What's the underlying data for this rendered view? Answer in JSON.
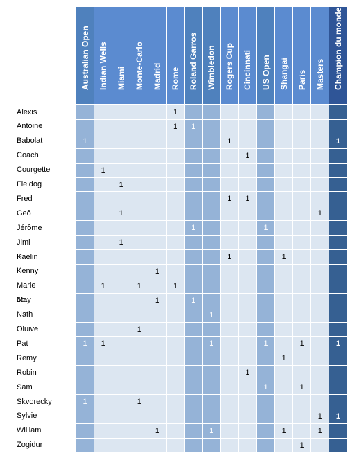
{
  "columns": [
    "Australian Open",
    "Indian Wells",
    "Miami",
    "Monte-Carlo",
    "Madrid",
    "Rome",
    "Roland Garros",
    "Wimbledon",
    "Rogers Cup",
    "Cincinnati",
    "US Open",
    "Shangai",
    "Paris",
    "Masters",
    "Champion du monde"
  ],
  "column_styles": [
    "mid",
    "light",
    "light",
    "light",
    "light",
    "light",
    "mid",
    "mid",
    "light",
    "light",
    "mid",
    "light",
    "light",
    "light",
    "dark"
  ],
  "rows": [
    {
      "name": "Alexis",
      "values": [
        "",
        "",
        "",
        "",
        "",
        "1",
        "",
        "",
        "",
        "",
        "",
        "",
        "",
        "",
        ""
      ]
    },
    {
      "name": "Antoine",
      "values": [
        "",
        "",
        "",
        "",
        "",
        "1",
        "1",
        "",
        "",
        "",
        "",
        "",
        "",
        "",
        ""
      ]
    },
    {
      "name": "Babolat",
      "values": [
        "1",
        "",
        "",
        "",
        "",
        "",
        "",
        "",
        "1",
        "",
        "",
        "",
        "",
        "",
        "1"
      ]
    },
    {
      "name": "Coach",
      "values": [
        "",
        "",
        "",
        "",
        "",
        "",
        "",
        "",
        "",
        "1",
        "",
        "",
        "",
        "",
        ""
      ]
    },
    {
      "name": "Courgette",
      "values": [
        "",
        "1",
        "",
        "",
        "",
        "",
        "",
        "",
        "",
        "",
        "",
        "",
        "",
        "",
        ""
      ]
    },
    {
      "name": "Fieldog",
      "values": [
        "",
        "",
        "1",
        "",
        "",
        "",
        "",
        "",
        "",
        "",
        "",
        "",
        "",
        "",
        ""
      ]
    },
    {
      "name": "Fred",
      "values": [
        "",
        "",
        "",
        "",
        "",
        "",
        "",
        "",
        "1",
        "1",
        "",
        "",
        "",
        "",
        ""
      ]
    },
    {
      "name": "Geô",
      "values": [
        "",
        "",
        "1",
        "",
        "",
        "",
        "",
        "",
        "",
        "",
        "",
        "",
        "",
        "1",
        ""
      ]
    },
    {
      "name": "Jérôme",
      "values": [
        "",
        "",
        "",
        "",
        "",
        "",
        "1",
        "",
        "",
        "",
        "1",
        "",
        "",
        "",
        ""
      ]
    },
    {
      "name": "Jimi H",
      "values": [
        "",
        "",
        "1",
        "",
        "",
        "",
        "",
        "",
        "",
        "",
        "",
        "",
        "",
        "",
        ""
      ]
    },
    {
      "name": "Kaelin",
      "values": [
        "",
        "",
        "",
        "",
        "",
        "",
        "",
        "",
        "1",
        "",
        "",
        "1",
        "",
        "",
        ""
      ]
    },
    {
      "name": "Kenny",
      "values": [
        "",
        "",
        "",
        "",
        "1",
        "",
        "",
        "",
        "",
        "",
        "",
        "",
        "",
        "",
        ""
      ]
    },
    {
      "name": "Marie Jo",
      "values": [
        "",
        "1",
        "",
        "1",
        "",
        "1",
        "",
        "",
        "",
        "",
        "",
        "",
        "",
        "",
        ""
      ]
    },
    {
      "name": "May",
      "values": [
        "",
        "",
        "",
        "",
        "1",
        "",
        "1",
        "",
        "",
        "",
        "",
        "",
        "",
        "",
        ""
      ]
    },
    {
      "name": "Nath",
      "values": [
        "",
        "",
        "",
        "",
        "",
        "",
        "",
        "1",
        "",
        "",
        "",
        "",
        "",
        "",
        ""
      ]
    },
    {
      "name": "Oluive",
      "values": [
        "",
        "",
        "",
        "1",
        "",
        "",
        "",
        "",
        "",
        "",
        "",
        "",
        "",
        "",
        ""
      ]
    },
    {
      "name": "Pat",
      "values": [
        "1",
        "1",
        "",
        "",
        "",
        "",
        "",
        "1",
        "",
        "",
        "1",
        "",
        "1",
        "",
        "1"
      ]
    },
    {
      "name": "Remy",
      "values": [
        "",
        "",
        "",
        "",
        "",
        "",
        "",
        "",
        "",
        "",
        "",
        "1",
        "",
        "",
        ""
      ]
    },
    {
      "name": "Robin",
      "values": [
        "",
        "",
        "",
        "",
        "",
        "",
        "",
        "",
        "",
        "1",
        "",
        "",
        "",
        "",
        ""
      ]
    },
    {
      "name": "Sam",
      "values": [
        "",
        "",
        "",
        "",
        "",
        "",
        "",
        "",
        "",
        "",
        "1",
        "",
        "1",
        "",
        ""
      ]
    },
    {
      "name": "Skvorecky",
      "values": [
        "1",
        "",
        "",
        "1",
        "",
        "",
        "",
        "",
        "",
        "",
        "",
        "",
        "",
        "",
        ""
      ]
    },
    {
      "name": "Sylvie",
      "values": [
        "",
        "",
        "",
        "",
        "",
        "",
        "",
        "",
        "",
        "",
        "",
        "",
        "",
        "1",
        "1"
      ]
    },
    {
      "name": "William",
      "values": [
        "",
        "",
        "",
        "",
        "1",
        "",
        "",
        "1",
        "",
        "",
        "",
        "1",
        "",
        "1",
        ""
      ]
    },
    {
      "name": "Zogidur",
      "values": [
        "",
        "",
        "",
        "",
        "",
        "",
        "",
        "",
        "",
        "",
        "",
        "",
        "1",
        "",
        ""
      ]
    }
  ]
}
